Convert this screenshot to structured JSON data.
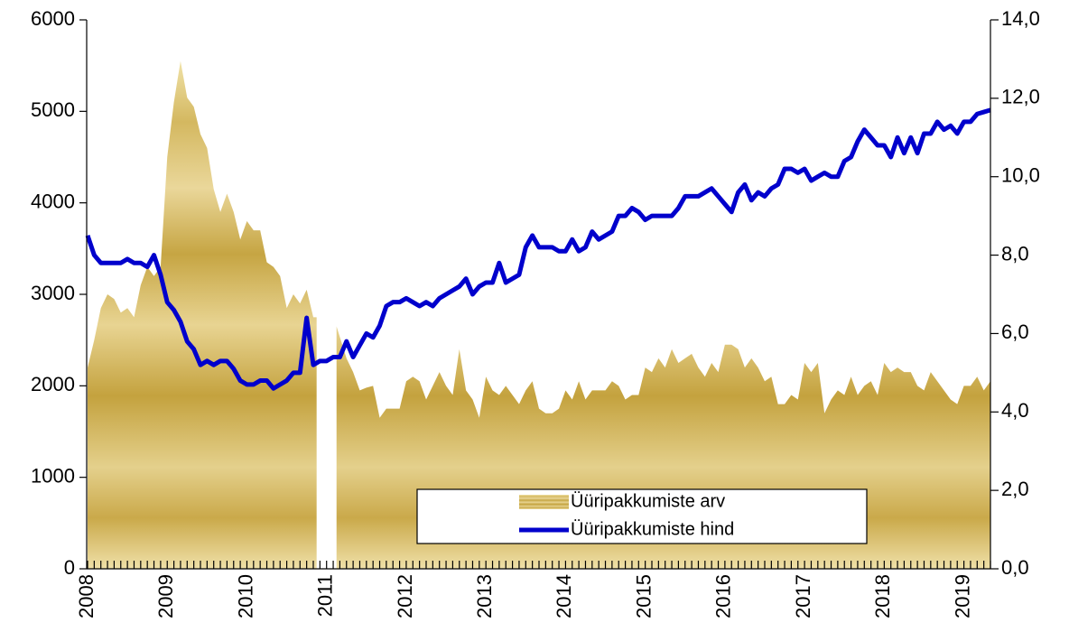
{
  "chart_data": {
    "type": "combo",
    "categories": [
      "2008",
      null,
      null,
      null,
      null,
      null,
      null,
      null,
      null,
      null,
      null,
      null,
      "2009",
      null,
      null,
      null,
      null,
      null,
      null,
      null,
      null,
      null,
      null,
      null,
      "2010",
      null,
      null,
      null,
      null,
      null,
      null,
      null,
      null,
      null,
      null,
      null,
      "2011",
      null,
      null,
      null,
      null,
      null,
      null,
      null,
      null,
      null,
      null,
      null,
      "2012",
      null,
      null,
      null,
      null,
      null,
      null,
      null,
      null,
      null,
      null,
      null,
      "2013",
      null,
      null,
      null,
      null,
      null,
      null,
      null,
      null,
      null,
      null,
      null,
      "2014",
      null,
      null,
      null,
      null,
      null,
      null,
      null,
      null,
      null,
      null,
      null,
      "2015",
      null,
      null,
      null,
      null,
      null,
      null,
      null,
      null,
      null,
      null,
      null,
      "2016",
      null,
      null,
      null,
      null,
      null,
      null,
      null,
      null,
      null,
      null,
      null,
      "2017",
      null,
      null,
      null,
      null,
      null,
      null,
      null,
      null,
      null,
      null,
      null,
      "2018",
      null,
      null,
      null,
      null,
      null,
      null,
      null,
      null,
      null,
      null,
      null,
      "2019",
      null,
      null,
      null,
      null
    ],
    "series": [
      {
        "name": "Üüripakkumiste arv",
        "type": "area",
        "color": "#c9a84a",
        "values": [
          2200,
          2500,
          2850,
          3000,
          2950,
          2800,
          2850,
          2750,
          3100,
          3300,
          3200,
          3300,
          4500,
          5100,
          5550,
          5150,
          5050,
          4750,
          4600,
          4150,
          3900,
          4100,
          3900,
          3600,
          3800,
          3700,
          3700,
          3350,
          3300,
          3200,
          2850,
          3000,
          2900,
          3050,
          2750,
          null,
          null,
          null,
          2650,
          2300,
          2150,
          1950,
          1980,
          2000,
          1650,
          1750,
          1750,
          1750,
          2050,
          2100,
          2050,
          1850,
          2000,
          2150,
          2000,
          1900,
          2400,
          1950,
          1850,
          1650,
          2100,
          1950,
          1900,
          2000,
          1900,
          1800,
          1950,
          2050,
          1750,
          1700,
          1700,
          1750,
          1950,
          1850,
          2050,
          1850,
          1950,
          1950,
          1950,
          2050,
          2000,
          1850,
          1900,
          1900,
          2200,
          2150,
          2300,
          2200,
          2400,
          2250,
          2300,
          2350,
          2200,
          2100,
          2250,
          2150,
          2450,
          2450,
          2400,
          2200,
          2300,
          2200,
          2050,
          2100,
          1800,
          1800,
          1900,
          1850,
          2250,
          2150,
          2250,
          1700,
          1850,
          1950,
          1900,
          2100,
          1900,
          2000,
          2050,
          1900,
          2250,
          2150,
          2200,
          2150,
          2150,
          2000,
          1950,
          2150,
          2050,
          1950,
          1850,
          1800,
          2000,
          2000,
          2100,
          1950,
          2050
        ]
      },
      {
        "name": "Üüripakkumiste hind",
        "type": "line",
        "axis": "y2",
        "color": "#0000cc",
        "values": [
          8.5,
          8.0,
          7.8,
          7.8,
          7.8,
          7.8,
          7.9,
          7.8,
          7.8,
          7.7,
          8.0,
          7.5,
          6.8,
          6.6,
          6.3,
          5.8,
          5.6,
          5.2,
          5.3,
          5.2,
          5.3,
          5.3,
          5.1,
          4.8,
          4.7,
          4.7,
          4.8,
          4.8,
          4.6,
          4.7,
          4.8,
          5.0,
          5.0,
          6.4,
          5.2,
          5.3,
          5.3,
          5.4,
          5.4,
          5.8,
          5.4,
          5.7,
          6.0,
          5.9,
          6.2,
          6.7,
          6.8,
          6.8,
          6.9,
          6.8,
          6.7,
          6.8,
          6.7,
          6.9,
          7.0,
          7.1,
          7.2,
          7.4,
          7.0,
          7.2,
          7.3,
          7.3,
          7.8,
          7.3,
          7.4,
          7.5,
          8.2,
          8.5,
          8.2,
          8.2,
          8.2,
          8.1,
          8.1,
          8.4,
          8.1,
          8.2,
          8.6,
          8.4,
          8.5,
          8.6,
          9.0,
          9.0,
          9.2,
          9.1,
          8.9,
          9.0,
          9.0,
          9.0,
          9.0,
          9.2,
          9.5,
          9.5,
          9.5,
          9.6,
          9.7,
          9.5,
          9.3,
          9.1,
          9.6,
          9.8,
          9.4,
          9.6,
          9.5,
          9.7,
          9.8,
          10.2,
          10.2,
          10.1,
          10.2,
          9.9,
          10.0,
          10.1,
          10.0,
          10.0,
          10.4,
          10.5,
          10.9,
          11.2,
          11.0,
          10.8,
          10.8,
          10.5,
          11.0,
          10.6,
          11.0,
          10.6,
          11.1,
          11.1,
          11.4,
          11.2,
          11.3,
          11.1,
          11.4,
          11.4,
          11.6,
          11.65,
          11.7
        ]
      }
    ],
    "ylim": [
      0,
      6000
    ],
    "yticks": [
      0,
      1000,
      2000,
      3000,
      4000,
      5000,
      6000
    ],
    "y2lim": [
      0,
      14
    ],
    "y2ticks": [
      {
        "value": 0,
        "label": "0,0"
      },
      {
        "value": 2,
        "label": "2,0"
      },
      {
        "value": 4,
        "label": "4,0"
      },
      {
        "value": 6,
        "label": "6,0"
      },
      {
        "value": 8,
        "label": "8,0"
      },
      {
        "value": 10,
        "label": "10,0"
      },
      {
        "value": 12,
        "label": "12,0"
      },
      {
        "value": 14,
        "label": "14,0"
      }
    ],
    "legend": "bottom-right"
  }
}
